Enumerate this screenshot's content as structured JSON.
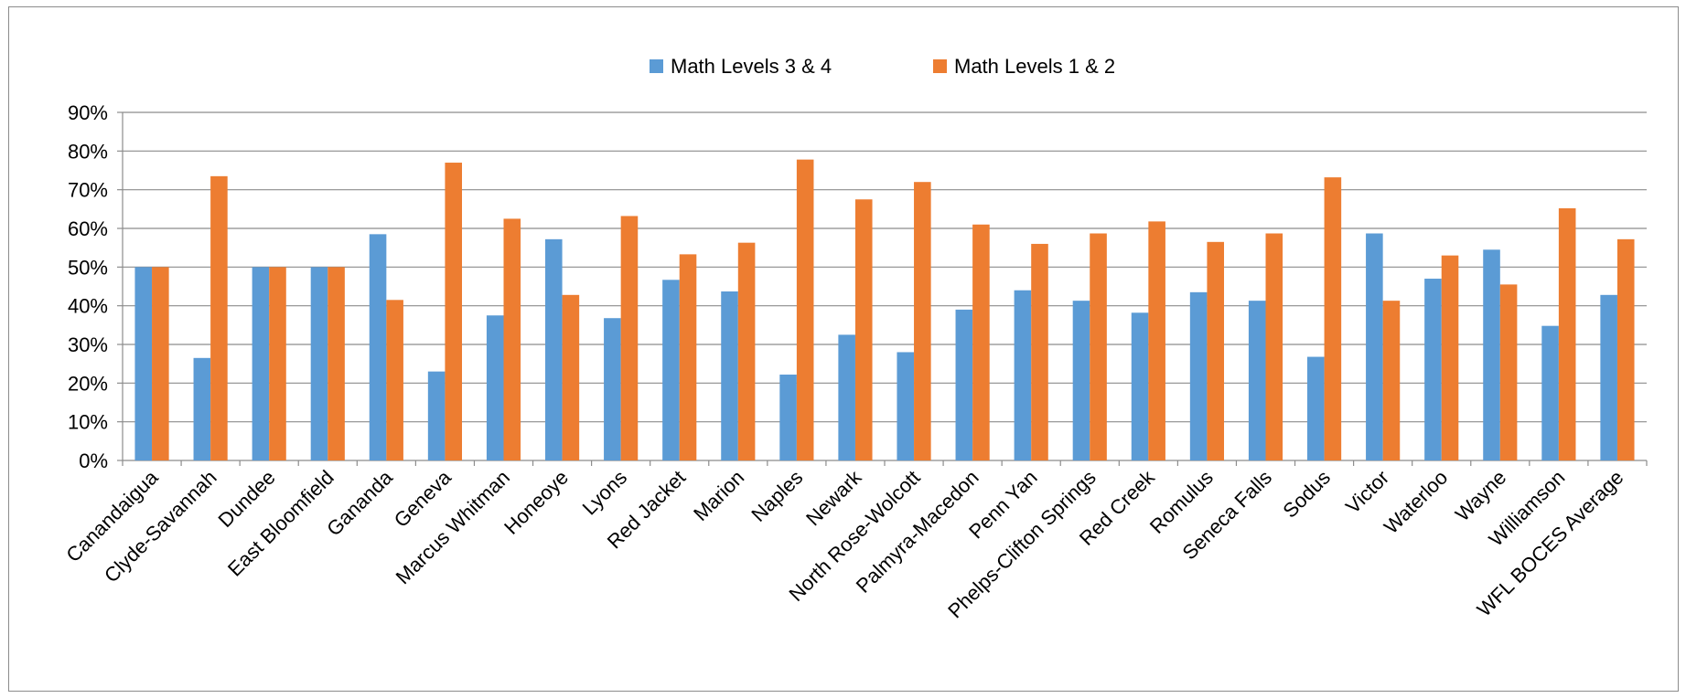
{
  "chart_data": {
    "type": "bar",
    "title": "",
    "xlabel": "",
    "ylabel": "",
    "ylim": [
      0,
      0.9
    ],
    "y_tick_format": "percent",
    "y_ticks": [
      "0%",
      "10%",
      "20%",
      "30%",
      "40%",
      "50%",
      "60%",
      "70%",
      "80%",
      "90%"
    ],
    "grid": true,
    "legend_position": "top-center",
    "categories": [
      "Canandaigua",
      "Clyde-Savannah",
      "Dundee",
      "East Bloomfield",
      "Gananda",
      "Geneva",
      "Marcus Whitman",
      "Honeoye",
      "Lyons",
      "Red Jacket",
      "Marion",
      "Naples",
      "Newark",
      "North Rose-Wolcott",
      "Palmyra-Macedon",
      "Penn Yan",
      "Phelps-Clifton Springs",
      "Red Creek",
      "Romulus",
      "Seneca Falls",
      "Sodus",
      "Victor",
      "Waterloo",
      "Wayne",
      "Williamson",
      "WFL BOCES Average"
    ],
    "series": [
      {
        "name": "Math Levels 3 & 4",
        "color": "#5b9bd5",
        "values": [
          0.5,
          0.265,
          0.5,
          0.5,
          0.585,
          0.23,
          0.375,
          0.572,
          0.368,
          0.467,
          0.437,
          0.222,
          0.325,
          0.28,
          0.39,
          0.44,
          0.413,
          0.382,
          0.435,
          0.413,
          0.268,
          0.587,
          0.47,
          0.545,
          0.348,
          0.428
        ]
      },
      {
        "name": "Math Levels 1 & 2",
        "color": "#ed7d31",
        "values": [
          0.5,
          0.735,
          0.5,
          0.5,
          0.415,
          0.77,
          0.625,
          0.428,
          0.632,
          0.533,
          0.563,
          0.778,
          0.675,
          0.72,
          0.61,
          0.56,
          0.587,
          0.618,
          0.565,
          0.587,
          0.732,
          0.413,
          0.53,
          0.455,
          0.652,
          0.572
        ]
      }
    ]
  }
}
